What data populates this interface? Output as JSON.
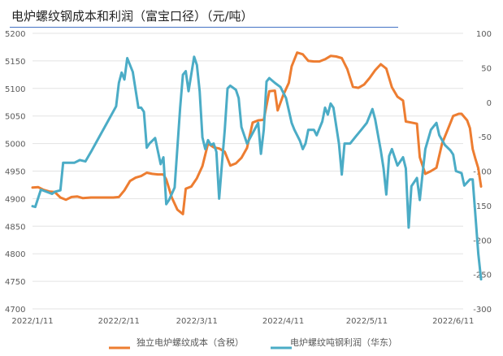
{
  "chart_data": {
    "type": "line",
    "title": "电炉螺纹钢成本和利润（富宝口径）（元/吨）",
    "x_ticks": [
      "2022/1/11",
      "2022/2/11",
      "2022/3/11",
      "2022/4/11",
      "2022/5/11",
      "2022/6/11"
    ],
    "y_left": {
      "min": 4700,
      "max": 5200,
      "ticks": [
        4700,
        4750,
        4800,
        4850,
        4900,
        4950,
        5000,
        5050,
        5100,
        5150,
        5200
      ]
    },
    "y_right": {
      "min": -300,
      "max": 100,
      "ticks": [
        -300,
        -250,
        -200,
        -150,
        -100,
        -50,
        0,
        50,
        100
      ]
    },
    "x_range": [
      "2022-01-11",
      "2022-06-17"
    ],
    "series": [
      {
        "name": "独立电炉螺纹成本（含税）",
        "axis": "left",
        "color": "#ed7d31",
        "points": [
          [
            "2022-01-11",
            4920
          ],
          [
            "2022-01-13",
            4921
          ],
          [
            "2022-01-15",
            4916
          ],
          [
            "2022-01-17",
            4913
          ],
          [
            "2022-01-19",
            4912
          ],
          [
            "2022-01-21",
            4902
          ],
          [
            "2022-01-23",
            4898
          ],
          [
            "2022-01-25",
            4903
          ],
          [
            "2022-01-27",
            4904
          ],
          [
            "2022-01-29",
            4901
          ],
          [
            "2022-02-01",
            4902
          ],
          [
            "2022-02-04",
            4902
          ],
          [
            "2022-02-07",
            4902
          ],
          [
            "2022-02-09",
            4902
          ],
          [
            "2022-02-11",
            4903
          ],
          [
            "2022-02-13",
            4915
          ],
          [
            "2022-02-15",
            4932
          ],
          [
            "2022-02-17",
            4938
          ],
          [
            "2022-02-19",
            4941
          ],
          [
            "2022-02-21",
            4947
          ],
          [
            "2022-02-23",
            4945
          ],
          [
            "2022-02-25",
            4944
          ],
          [
            "2022-02-27",
            4944
          ],
          [
            "2022-02-28",
            4935
          ],
          [
            "2022-03-02",
            4902
          ],
          [
            "2022-03-04",
            4880
          ],
          [
            "2022-03-06",
            4872
          ],
          [
            "2022-03-07",
            4918
          ],
          [
            "2022-03-09",
            4922
          ],
          [
            "2022-03-11",
            4937
          ],
          [
            "2022-03-13",
            4959
          ],
          [
            "2022-03-15",
            5000
          ],
          [
            "2022-03-17",
            4993
          ],
          [
            "2022-03-19",
            4991
          ],
          [
            "2022-03-21",
            4985
          ],
          [
            "2022-03-23",
            4960
          ],
          [
            "2022-03-25",
            4964
          ],
          [
            "2022-03-27",
            4974
          ],
          [
            "2022-03-29",
            4992
          ],
          [
            "2022-03-31",
            5038
          ],
          [
            "2022-04-02",
            5042
          ],
          [
            "2022-04-04",
            5043
          ],
          [
            "2022-04-06",
            5095
          ],
          [
            "2022-04-08",
            5096
          ],
          [
            "2022-04-09",
            5060
          ],
          [
            "2022-04-11",
            5088
          ],
          [
            "2022-04-13",
            5110
          ],
          [
            "2022-04-14",
            5140
          ],
          [
            "2022-04-16",
            5165
          ],
          [
            "2022-04-18",
            5162
          ],
          [
            "2022-04-20",
            5150
          ],
          [
            "2022-04-22",
            5149
          ],
          [
            "2022-04-24",
            5149
          ],
          [
            "2022-04-26",
            5153
          ],
          [
            "2022-04-28",
            5159
          ],
          [
            "2022-04-30",
            5158
          ],
          [
            "2022-05-02",
            5155
          ],
          [
            "2022-05-04",
            5135
          ],
          [
            "2022-05-06",
            5103
          ],
          [
            "2022-05-08",
            5101
          ],
          [
            "2022-05-10",
            5107
          ],
          [
            "2022-05-12",
            5119
          ],
          [
            "2022-05-14",
            5133
          ],
          [
            "2022-05-16",
            5144
          ],
          [
            "2022-05-18",
            5136
          ],
          [
            "2022-05-20",
            5102
          ],
          [
            "2022-05-22",
            5085
          ],
          [
            "2022-05-24",
            5078
          ],
          [
            "2022-05-25",
            5040
          ],
          [
            "2022-05-27",
            5038
          ],
          [
            "2022-05-29",
            5036
          ],
          [
            "2022-05-30",
            4975
          ],
          [
            "2022-06-01",
            4945
          ],
          [
            "2022-06-03",
            4950
          ],
          [
            "2022-06-05",
            4956
          ],
          [
            "2022-06-07",
            5000
          ],
          [
            "2022-06-09",
            5025
          ],
          [
            "2022-06-11",
            5050
          ],
          [
            "2022-06-13",
            5054
          ],
          [
            "2022-06-14",
            5054
          ],
          [
            "2022-06-16",
            5042
          ],
          [
            "2022-06-17",
            5028
          ],
          [
            "2022-06-18",
            4990
          ],
          [
            "2022-06-19",
            4972
          ],
          [
            "2022-06-20",
            4955
          ],
          [
            "2022-06-21",
            4922
          ]
        ]
      },
      {
        "name": "电炉螺纹吨钢利润（华东）",
        "axis": "right",
        "color": "#4bacc6",
        "points": [
          [
            "2022-01-11",
            -151
          ],
          [
            "2022-01-12",
            -152
          ],
          [
            "2022-01-14",
            -127
          ],
          [
            "2022-01-16",
            -130
          ],
          [
            "2022-01-18",
            -133
          ],
          [
            "2022-01-19",
            -130
          ],
          [
            "2022-01-21",
            -128
          ],
          [
            "2022-01-22",
            -88
          ],
          [
            "2022-01-24",
            -88
          ],
          [
            "2022-01-26",
            -88
          ],
          [
            "2022-01-28",
            -84
          ],
          [
            "2022-01-30",
            -86
          ],
          [
            "2022-02-01",
            -72
          ],
          [
            "2022-02-04",
            -50
          ],
          [
            "2022-02-07",
            -28
          ],
          [
            "2022-02-10",
            -6
          ],
          [
            "2022-02-11",
            28
          ],
          [
            "2022-02-12",
            43
          ],
          [
            "2022-02-13",
            33
          ],
          [
            "2022-02-14",
            64
          ],
          [
            "2022-02-16",
            44
          ],
          [
            "2022-02-18",
            -8
          ],
          [
            "2022-02-19",
            -8
          ],
          [
            "2022-02-20",
            -14
          ],
          [
            "2022-02-21",
            -66
          ],
          [
            "2022-02-22",
            -60
          ],
          [
            "2022-02-24",
            -52
          ],
          [
            "2022-02-26",
            -90
          ],
          [
            "2022-02-28",
            -148
          ],
          [
            "2022-02-27",
            -80
          ],
          [
            "2022-03-01",
            -142
          ],
          [
            "2022-03-03",
            -124
          ],
          [
            "2022-03-05",
            -8
          ],
          [
            "2022-03-06",
            40
          ],
          [
            "2022-03-07",
            45
          ],
          [
            "2022-03-08",
            16
          ],
          [
            "2022-03-10",
            66
          ],
          [
            "2022-03-11",
            54
          ],
          [
            "2022-03-12",
            16
          ],
          [
            "2022-03-13",
            -51
          ],
          [
            "2022-03-14",
            -68
          ],
          [
            "2022-03-15",
            -55
          ],
          [
            "2022-03-16",
            -62
          ],
          [
            "2022-03-17",
            -60
          ],
          [
            "2022-03-18",
            -72
          ],
          [
            "2022-03-19",
            -140
          ],
          [
            "2022-03-20",
            -90
          ],
          [
            "2022-03-21",
            -40
          ],
          [
            "2022-03-22",
            20
          ],
          [
            "2022-03-23",
            24
          ],
          [
            "2022-03-25",
            18
          ],
          [
            "2022-03-26",
            6
          ],
          [
            "2022-03-27",
            -36
          ],
          [
            "2022-03-29",
            -60
          ],
          [
            "2022-03-31",
            -45
          ],
          [
            "2022-04-02",
            -30
          ],
          [
            "2022-04-03",
            -75
          ],
          [
            "2022-04-04",
            -40
          ],
          [
            "2022-04-05",
            30
          ],
          [
            "2022-04-06",
            35
          ],
          [
            "2022-04-08",
            28
          ],
          [
            "2022-04-10",
            22
          ],
          [
            "2022-04-12",
            6
          ],
          [
            "2022-04-14",
            -30
          ],
          [
            "2022-04-15",
            -40
          ],
          [
            "2022-04-17",
            -56
          ],
          [
            "2022-04-18",
            -68
          ],
          [
            "2022-04-19",
            -60
          ],
          [
            "2022-04-20",
            -40
          ],
          [
            "2022-04-22",
            -40
          ],
          [
            "2022-04-23",
            -48
          ],
          [
            "2022-04-25",
            -28
          ],
          [
            "2022-04-26",
            -8
          ],
          [
            "2022-04-27",
            -18
          ],
          [
            "2022-04-28",
            -2
          ],
          [
            "2022-04-29",
            -8
          ],
          [
            "2022-05-01",
            -60
          ],
          [
            "2022-05-02",
            -105
          ],
          [
            "2022-05-03",
            -60
          ],
          [
            "2022-05-05",
            -60
          ],
          [
            "2022-05-07",
            -50
          ],
          [
            "2022-05-09",
            -40
          ],
          [
            "2022-05-11",
            -30
          ],
          [
            "2022-05-13",
            -10
          ],
          [
            "2022-05-14",
            -25
          ],
          [
            "2022-05-16",
            -70
          ],
          [
            "2022-05-17",
            -96
          ],
          [
            "2022-05-18",
            -134
          ],
          [
            "2022-05-19",
            -78
          ],
          [
            "2022-05-20",
            -68
          ],
          [
            "2022-05-22",
            -92
          ],
          [
            "2022-05-24",
            -80
          ],
          [
            "2022-05-25",
            -96
          ],
          [
            "2022-05-26",
            -182
          ],
          [
            "2022-05-27",
            -122
          ],
          [
            "2022-05-29",
            -110
          ],
          [
            "2022-05-30",
            -142
          ],
          [
            "2022-05-31",
            -104
          ],
          [
            "2022-06-01",
            -68
          ],
          [
            "2022-06-03",
            -40
          ],
          [
            "2022-06-05",
            -30
          ],
          [
            "2022-06-06",
            -48
          ],
          [
            "2022-06-08",
            -62
          ],
          [
            "2022-06-10",
            -70
          ],
          [
            "2022-06-11",
            -76
          ],
          [
            "2022-06-12",
            -100
          ],
          [
            "2022-06-14",
            -103
          ],
          [
            "2022-06-15",
            -121
          ],
          [
            "2022-06-17",
            -112
          ],
          [
            "2022-06-18",
            -112
          ],
          [
            "2022-06-19",
            -165
          ],
          [
            "2022-06-20",
            -220
          ],
          [
            "2022-06-21",
            -257
          ]
        ]
      }
    ],
    "legend": {
      "position": "bottom"
    }
  }
}
